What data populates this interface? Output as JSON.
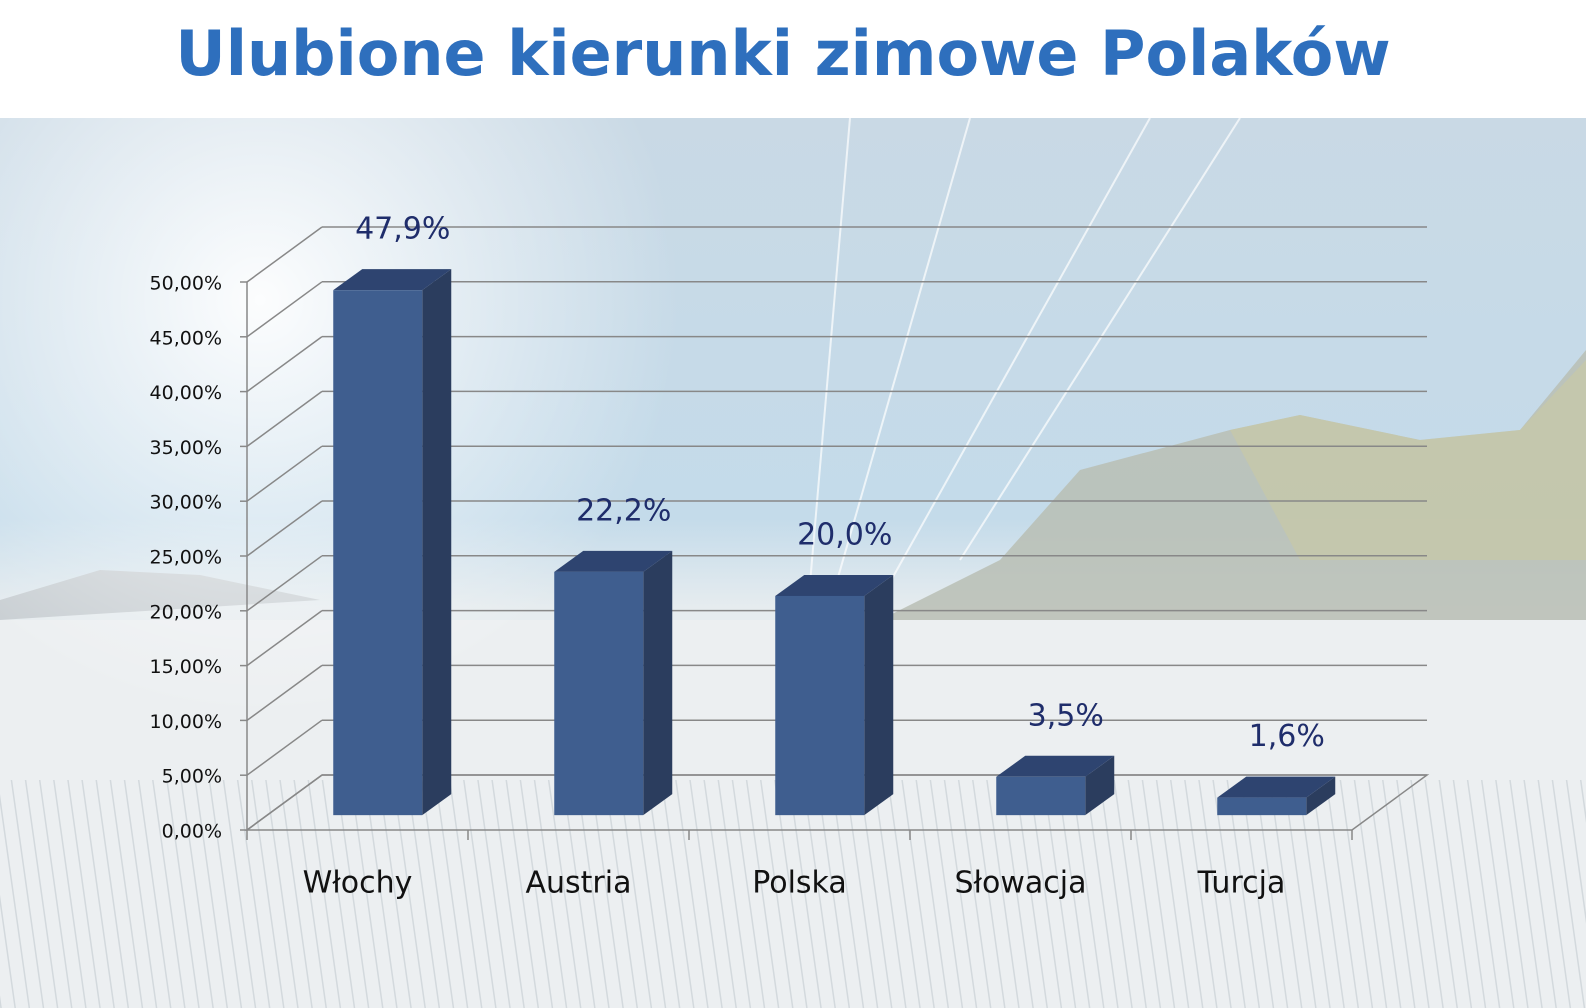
{
  "chart_data": {
    "type": "bar3d",
    "title": "Ulubione kierunki zimowe Polaków",
    "categories": [
      "Włochy",
      "Austria",
      "Polska",
      "Słowacja",
      "Turcja"
    ],
    "values": [
      47.9,
      22.2,
      20.0,
      3.5,
      1.6
    ],
    "value_labels": [
      "47,9%",
      "22,2%",
      "20,0%",
      "3,5%",
      "1,6%"
    ],
    "color": "#3f5e8f",
    "ylim": [
      0,
      50
    ],
    "yticks": [
      {
        "value": 0,
        "label": "0,00%"
      },
      {
        "value": 5,
        "label": "5,00%"
      },
      {
        "value": 10,
        "label": "10,00%"
      },
      {
        "value": 15,
        "label": "15,00%"
      },
      {
        "value": 20,
        "label": "20,00%"
      },
      {
        "value": 25,
        "label": "25,00%"
      },
      {
        "value": 30,
        "label": "30,00%"
      },
      {
        "value": 35,
        "label": "35,00%"
      },
      {
        "value": 40,
        "label": "40,00%"
      },
      {
        "value": 45,
        "label": "45,00%"
      },
      {
        "value": 50,
        "label": "50,00%"
      }
    ],
    "grid": true
  }
}
